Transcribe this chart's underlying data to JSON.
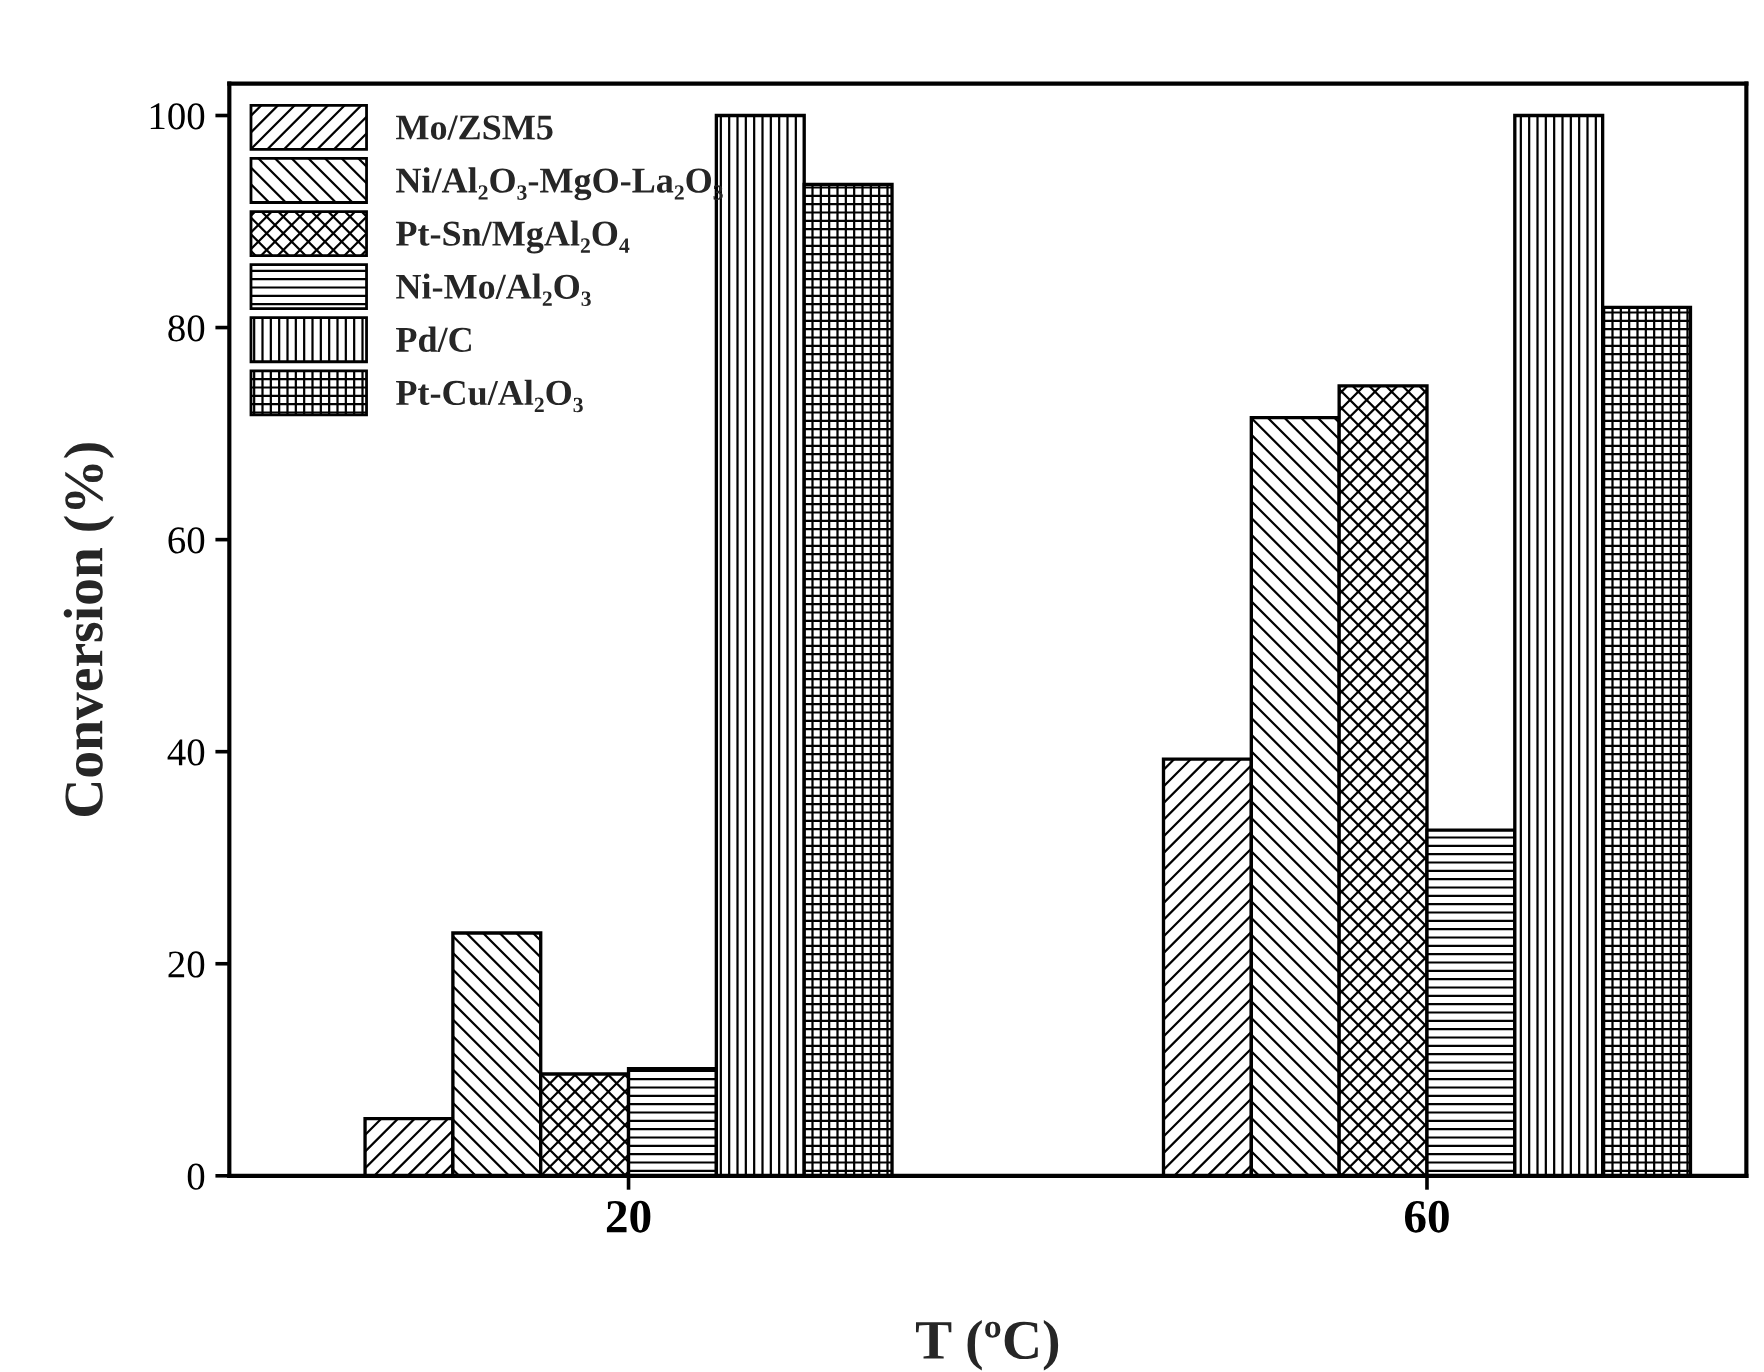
{
  "chart_data": {
    "type": "bar",
    "xlabel": "T (ºC)",
    "ylabel": "Conversion (%)",
    "categories": [
      "20",
      "60"
    ],
    "series": [
      {
        "name": "Mo/ZSM5",
        "color": "#000000",
        "values": [
          5.4,
          39.3
        ]
      },
      {
        "name": "Ni/Al₂O₃-MgO-La₂O₃",
        "color": "#000000",
        "values": [
          22.9,
          71.5
        ]
      },
      {
        "name": "Pt-Sn/MgAl₂O₄",
        "color": "#000000",
        "values": [
          9.6,
          74.5
        ]
      },
      {
        "name": "Ni-Mo/Al₂O₃",
        "color": "#000000",
        "values": [
          10.1,
          32.6
        ]
      },
      {
        "name": "Pd/C",
        "color": "#000000",
        "values": [
          100,
          100
        ]
      },
      {
        "name": "Pt-Cu/Al₂O₃",
        "color": "#000000",
        "values": [
          93.5,
          81.9
        ]
      }
    ],
    "ylim": [
      0,
      103
    ],
    "yticks": [
      0,
      20,
      40,
      60,
      80,
      100
    ],
    "grid": false,
    "legend": "top left"
  }
}
